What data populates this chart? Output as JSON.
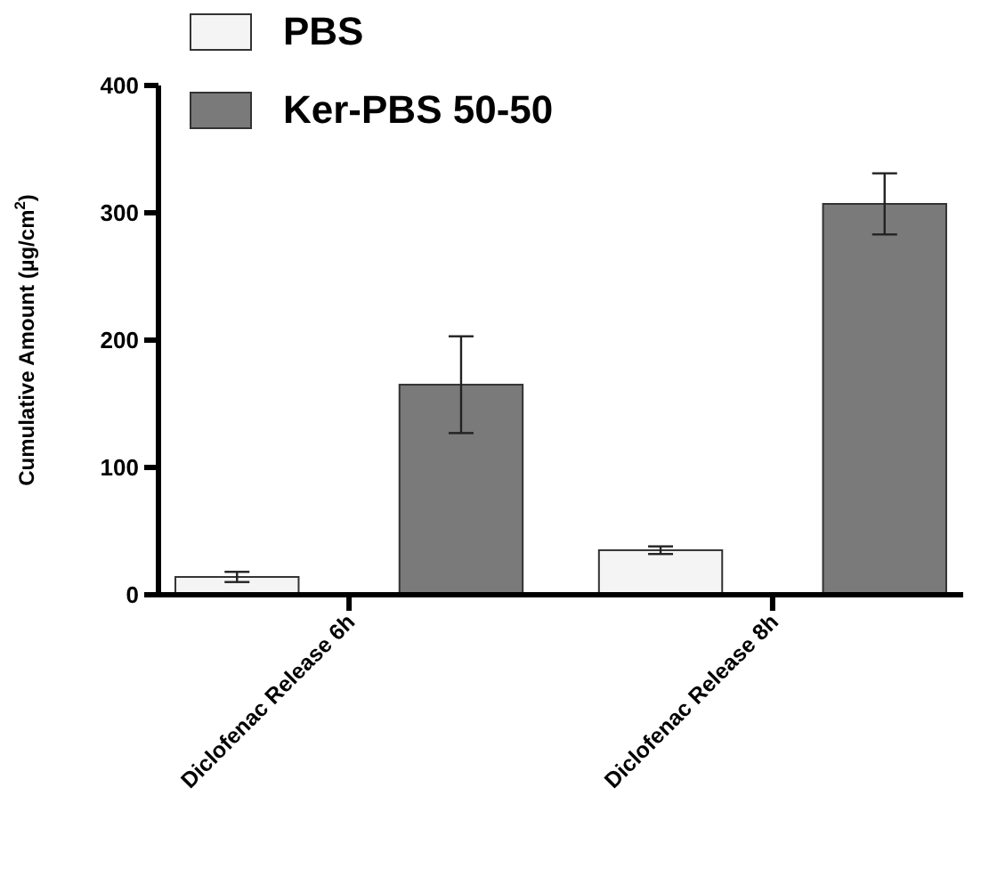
{
  "chart_data": {
    "type": "bar",
    "ylabel": "Cumulative Amount (µg/cm$^{2}$)",
    "categories": [
      "Diclofenac Release 6h",
      "Diclofenac Release 8h"
    ],
    "series": [
      {
        "name": "PBS",
        "color": "#f4f4f4",
        "values": [
          14,
          35
        ],
        "errors": [
          4,
          3
        ]
      },
      {
        "name": "Ker-PBS 50-50",
        "color": "#7a7a7a",
        "values": [
          165,
          307
        ],
        "errors": [
          38,
          24
        ]
      }
    ],
    "ylim": [
      0,
      400
    ],
    "yticks": [
      0,
      100,
      200,
      300,
      400
    ],
    "grid": false,
    "legend": "top left"
  }
}
